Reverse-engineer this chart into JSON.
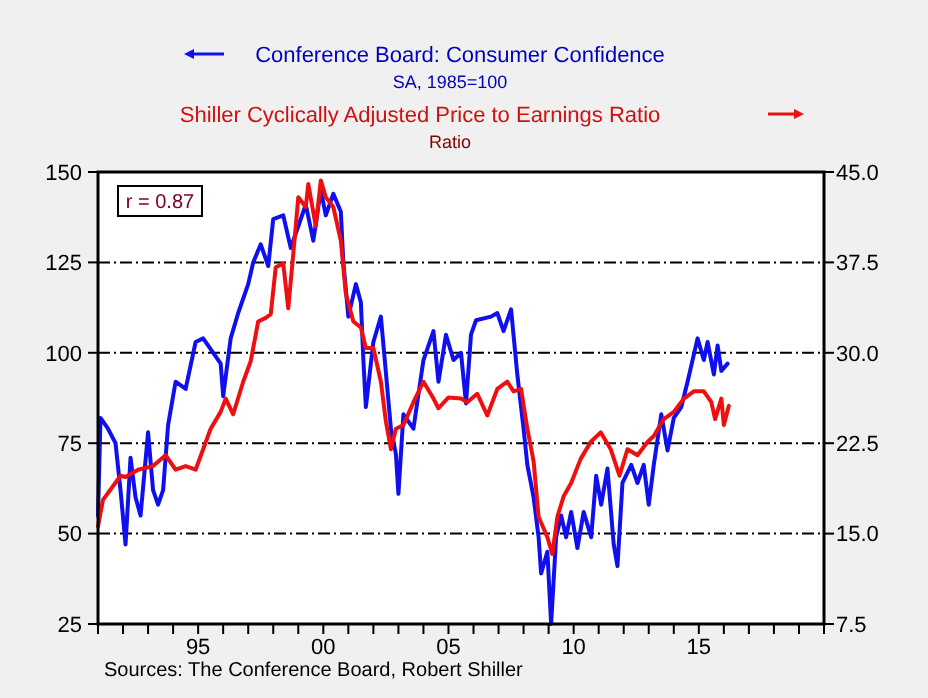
{
  "chart_data": {
    "type": "line",
    "legend": "top",
    "grid": "y",
    "xlim": [
      1991,
      2020
    ],
    "xticks": [
      {
        "value": 1991,
        "label": null
      },
      {
        "value": 1992,
        "label": null
      },
      {
        "value": 1993,
        "label": null
      },
      {
        "value": 1994,
        "label": null
      },
      {
        "value": 1995,
        "label": "95"
      },
      {
        "value": 1996,
        "label": null
      },
      {
        "value": 1997,
        "label": null
      },
      {
        "value": 1998,
        "label": null
      },
      {
        "value": 1999,
        "label": null
      },
      {
        "value": 2000,
        "label": "00"
      },
      {
        "value": 2001,
        "label": null
      },
      {
        "value": 2002,
        "label": null
      },
      {
        "value": 2003,
        "label": null
      },
      {
        "value": 2004,
        "label": null
      },
      {
        "value": 2005,
        "label": "05"
      },
      {
        "value": 2006,
        "label": null
      },
      {
        "value": 2007,
        "label": null
      },
      {
        "value": 2008,
        "label": null
      },
      {
        "value": 2009,
        "label": null
      },
      {
        "value": 2010,
        "label": "10"
      },
      {
        "value": 2011,
        "label": null
      },
      {
        "value": 2012,
        "label": null
      },
      {
        "value": 2013,
        "label": null
      },
      {
        "value": 2014,
        "label": null
      },
      {
        "value": 2015,
        "label": "15"
      },
      {
        "value": 2016,
        "label": null
      },
      {
        "value": 2017,
        "label": null
      },
      {
        "value": 2018,
        "label": null
      },
      {
        "value": 2019,
        "label": null
      },
      {
        "value": 2020,
        "label": null
      }
    ],
    "ylim": [
      25,
      150
    ],
    "yticks": [
      25,
      50,
      75,
      100,
      125,
      150
    ],
    "y2lim": [
      7.5,
      45
    ],
    "y2ticks": [
      {
        "value": 7.5,
        "label": "7.5"
      },
      {
        "value": 15,
        "label": "15.0"
      },
      {
        "value": 22.5,
        "label": "22.5"
      },
      {
        "value": 30,
        "label": "30.0"
      },
      {
        "value": 37.5,
        "label": "37.5"
      },
      {
        "value": 45,
        "label": "45.0"
      }
    ],
    "series": [
      {
        "name": "Conference Board: Consumer Confidence",
        "color": "#1010ee",
        "x": [
          1991.0,
          1991.1,
          1991.4,
          1991.7,
          1991.9,
          1992.1,
          1992.3,
          1992.5,
          1992.7,
          1993.0,
          1993.2,
          1993.4,
          1993.6,
          1993.8,
          1994.1,
          1994.5,
          1994.9,
          1995.2,
          1995.5,
          1995.9,
          1996.0,
          1996.3,
          1996.6,
          1997.0,
          1997.2,
          1997.5,
          1997.8,
          1998.0,
          1998.4,
          1998.7,
          1999.0,
          1999.3,
          1999.6,
          1999.9,
          2000.1,
          2000.4,
          2000.7,
          2000.8,
          2001.0,
          2001.3,
          2001.5,
          2001.6,
          2001.7,
          2002.0,
          2002.3,
          2002.7,
          2002.9,
          2003.0,
          2003.2,
          2003.6,
          2004.0,
          2004.4,
          2004.6,
          2004.9,
          2005.2,
          2005.5,
          2005.7,
          2005.9,
          2006.1,
          2006.7,
          2006.95,
          2007.2,
          2007.5,
          2007.75,
          2008.0,
          2008.15,
          2008.4,
          2008.6,
          2008.7,
          2008.95,
          2009.1,
          2009.3,
          2009.5,
          2009.7,
          2009.9,
          2010.15,
          2010.4,
          2010.7,
          2010.9,
          2011.1,
          2011.35,
          2011.6,
          2011.75,
          2011.95,
          2012.3,
          2012.55,
          2012.8,
          2013.0,
          2013.2,
          2013.5,
          2013.75,
          2014.0,
          2014.3,
          2014.55,
          2014.95,
          2015.2,
          2015.35,
          2015.6,
          2015.75,
          2015.9,
          2016.15
        ],
        "values": [
          55,
          82,
          79,
          75,
          62,
          47,
          71,
          60,
          55,
          78,
          62,
          58,
          62,
          80,
          92,
          90,
          103,
          104,
          101,
          97,
          88,
          104,
          111,
          119,
          125,
          130,
          124,
          137,
          138,
          129,
          135,
          141,
          131,
          145,
          138,
          144,
          139,
          125,
          110,
          119,
          114,
          98,
          85,
          103,
          110,
          79,
          72,
          61,
          83,
          79,
          98,
          106,
          92,
          105,
          98,
          100,
          86,
          105,
          109,
          110,
          111,
          106,
          112,
          94,
          79,
          69,
          60,
          49,
          39,
          45,
          25,
          49,
          55,
          49,
          56,
          46,
          56,
          49,
          66,
          58,
          68,
          47,
          41,
          64,
          69,
          64,
          69,
          58,
          69,
          83,
          73,
          82,
          85,
          92,
          104,
          98,
          103,
          94,
          102,
          95,
          97
        ]
      },
      {
        "name": "Shiller Cyclically Adjusted Price to Earnings Ratio",
        "color": "#ee1010",
        "axis": "y2",
        "x": [
          1991.0,
          1991.2,
          1991.9,
          1992.1,
          1992.6,
          1993.2,
          1993.7,
          1994.1,
          1994.5,
          1994.9,
          1995.2,
          1995.5,
          1995.9,
          1996.1,
          1996.4,
          1996.8,
          1997.1,
          1997.4,
          1997.7,
          1997.9,
          1998.1,
          1998.4,
          1998.6,
          1998.8,
          1999.0,
          1999.3,
          1999.4,
          1999.7,
          1999.9,
          2000.1,
          2000.4,
          2000.7,
          2000.9,
          2001.2,
          2001.5,
          2001.7,
          2002.0,
          2002.3,
          2002.5,
          2002.7,
          2002.9,
          2003.2,
          2003.6,
          2004.0,
          2004.4,
          2004.6,
          2005.0,
          2005.5,
          2005.75,
          2006.15,
          2006.55,
          2006.95,
          2007.35,
          2007.6,
          2007.9,
          2008.15,
          2008.4,
          2008.6,
          2008.95,
          2009.15,
          2009.35,
          2009.6,
          2009.9,
          2010.28,
          2010.68,
          2011.08,
          2011.48,
          2011.83,
          2012.15,
          2012.55,
          2012.95,
          2013.2,
          2013.6,
          2014.0,
          2014.4,
          2014.8,
          2015.2,
          2015.5,
          2015.65,
          2015.9,
          2016.0,
          2016.2
        ],
        "values": [
          15.6,
          17.8,
          19.8,
          19.7,
          20.3,
          20.6,
          21.5,
          20.3,
          20.6,
          20.3,
          22.0,
          23.7,
          25.1,
          26.2,
          24.9,
          27.6,
          29.3,
          32.6,
          32.9,
          33.2,
          37.1,
          37.4,
          33.7,
          38.2,
          42.9,
          42.1,
          44.0,
          40.5,
          44.3,
          42.9,
          42.1,
          39.3,
          34.9,
          32.6,
          32.1,
          30.4,
          30.4,
          27.6,
          24.3,
          22.0,
          23.7,
          24.0,
          25.9,
          27.6,
          26.2,
          25.4,
          26.3,
          26.2,
          25.9,
          26.6,
          24.8,
          27.0,
          27.6,
          26.8,
          27.0,
          23.7,
          21.0,
          16.4,
          14.7,
          13.3,
          16.4,
          18.1,
          19.2,
          21.2,
          22.6,
          23.4,
          22.0,
          19.8,
          22.0,
          21.5,
          22.6,
          23.1,
          24.5,
          25.1,
          26.2,
          26.8,
          26.8,
          25.9,
          24.5,
          26.2,
          24.0,
          25.6
        ]
      }
    ],
    "annotations": [
      "r = 0.87",
      "Sources:  The Conference Board, Robert Shiller",
      "SA, 1985=100",
      "Ratio"
    ]
  }
}
